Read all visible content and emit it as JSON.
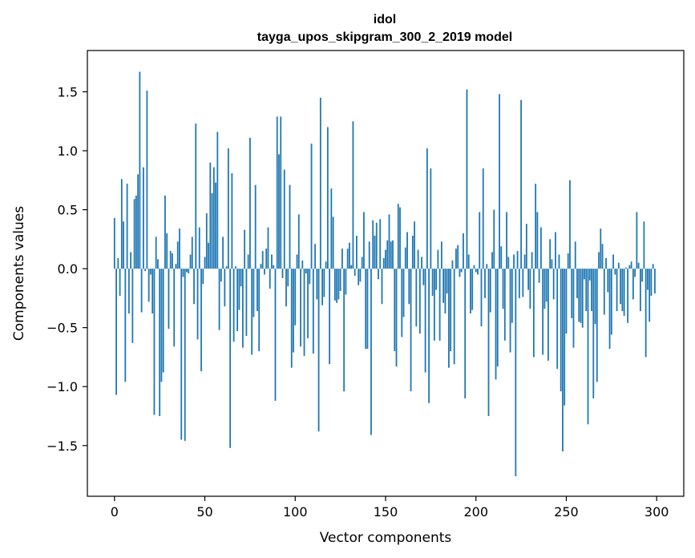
{
  "chart_data": {
    "type": "bar",
    "title": "idol",
    "subtitle": "tayga_upos_skipgram_300_2_2019 model",
    "xlabel": "Vector components",
    "ylabel": "Components values",
    "xlim": [
      -15,
      315
    ],
    "ylim": [
      -1.93,
      1.85
    ],
    "x_ticks": [
      0,
      50,
      100,
      150,
      200,
      250,
      300
    ],
    "x_tick_labels": [
      "0",
      "50",
      "100",
      "150",
      "200",
      "250",
      "300"
    ],
    "y_ticks": [
      -1.5,
      -1.0,
      -0.5,
      0.0,
      0.5,
      1.0,
      1.5
    ],
    "y_tick_labels": [
      "−1.5",
      "−1.0",
      "−0.5",
      "0.0",
      "0.5",
      "1.0",
      "1.5"
    ],
    "bar_color": "#1f77b4",
    "values": [
      0.43,
      -1.07,
      0.09,
      -0.23,
      0.76,
      0.4,
      -0.96,
      0.72,
      -0.38,
      0.14,
      -0.63,
      0.59,
      0.62,
      0.8,
      1.67,
      -0.37,
      0.86,
      -0.02,
      1.51,
      -0.28,
      -0.05,
      -0.38,
      -1.24,
      0.27,
      0.08,
      -1.25,
      -0.96,
      -0.88,
      0.62,
      0.3,
      -0.51,
      0.15,
      0.13,
      -0.66,
      0.04,
      0.23,
      0.34,
      -1.45,
      -0.07,
      -1.46,
      -0.03,
      -0.04,
      0.12,
      0.27,
      -0.3,
      1.23,
      -0.6,
      0.35,
      -0.87,
      -0.13,
      0.1,
      0.47,
      0.22,
      0.9,
      0.64,
      0.86,
      0.73,
      1.16,
      -0.52,
      -0.11,
      0.27,
      -0.32,
      0.02,
      1.02,
      -1.52,
      0.81,
      -0.62,
      0.02,
      -0.53,
      -0.35,
      -0.15,
      -0.67,
      0.33,
      -0.57,
      0.12,
      1.11,
      -0.73,
      -0.41,
      0.71,
      -0.36,
      -0.7,
      0.04,
      0.15,
      -0.05,
      0.17,
      0.35,
      -0.17,
      0.12,
      0.03,
      -1.12,
      1.29,
      0.97,
      1.29,
      -0.08,
      0.84,
      -0.32,
      -0.15,
      0.71,
      -0.84,
      -0.71,
      -0.48,
      0.12,
      0.46,
      -0.66,
      0.07,
      -0.74,
      -0.04,
      -0.59,
      -0.13,
      1.06,
      -0.72,
      0.21,
      -0.26,
      -1.38,
      1.45,
      -0.31,
      -0.24,
      0.06,
      1.2,
      -0.81,
      0.68,
      0.44,
      -0.27,
      -0.29,
      -0.26,
      -0.19,
      0.17,
      -1.04,
      -0.22,
      0.17,
      0.22,
      0.03,
      1.25,
      -0.06,
      0.28,
      -0.14,
      -0.11,
      0.1,
      0.48,
      -0.68,
      -0.68,
      0.23,
      -1.41,
      0.41,
      0.28,
      0.39,
      -0.09,
      0.42,
      -0.3,
      0.09,
      0.16,
      0.24,
      0.46,
      0.23,
      0.24,
      -0.7,
      -0.83,
      0.55,
      0.52,
      -0.58,
      -0.41,
      0.18,
      0.31,
      -0.3,
      -1.04,
      0.28,
      0.4,
      -0.49,
      0.16,
      -0.55,
      0.1,
      -0.14,
      -0.88,
      1.02,
      -1.14,
      0.85,
      -0.23,
      -0.61,
      -0.18,
      0.16,
      -0.61,
      0.23,
      -0.29,
      -0.38,
      -0.21,
      -0.84,
      -0.7,
      0.07,
      -0.81,
      0.17,
      0.2,
      -0.07,
      -0.03,
      0.3,
      -1.1,
      1.52,
      0.12,
      -0.38,
      -0.35,
      0.03,
      -0.03,
      -0.05,
      0.48,
      -0.49,
      0.85,
      -0.25,
      0.04,
      -1.25,
      -0.37,
      0.14,
      0.5,
      -0.94,
      -0.83,
      1.48,
      0.19,
      -0.34,
      -0.61,
      0.48,
      0.1,
      -0.71,
      -0.46,
      0.12,
      -1.76,
      0.15,
      -0.25,
      1.43,
      -0.24,
      0.12,
      0.38,
      -0.18,
      -0.34,
      0.14,
      -0.75,
      0.72,
      0.48,
      -0.12,
      0.35,
      -0.73,
      -0.34,
      -0.28,
      -0.78,
      0.25,
      0.08,
      -0.26,
      0.31,
      -0.85,
      0.12,
      -1.04,
      -1.55,
      -1.16,
      -0.55,
      0.13,
      0.75,
      -0.42,
      -0.67,
      0.23,
      -0.25,
      -0.45,
      -0.46,
      -0.5,
      -0.09,
      -0.36,
      -1.32,
      -0.1,
      -0.36,
      -1.1,
      -0.47,
      -0.96,
      0.14,
      0.34,
      0.21,
      -0.39,
      0.09,
      -0.2,
      -0.68,
      -0.56,
      0.12,
      -0.05,
      -0.36,
      0.05,
      -0.3,
      -0.36,
      -0.4,
      0.01,
      -0.46,
      0.03,
      0.06,
      -0.26,
      -0.07,
      0.48,
      0.05,
      -0.36,
      -0.11,
      0.4,
      -0.75,
      -0.18,
      -0.45,
      -0.23,
      0.04,
      -0.21
    ]
  }
}
